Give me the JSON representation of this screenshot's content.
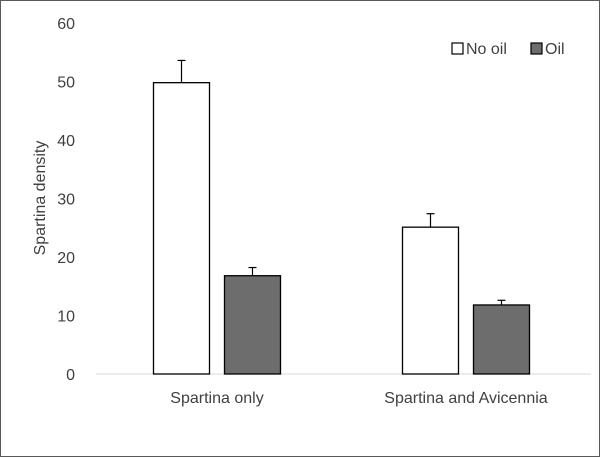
{
  "chart_data": {
    "type": "bar",
    "title": "",
    "xlabel": "",
    "ylabel": "Spartina density",
    "ylim": [
      0,
      60
    ],
    "yticks": [
      0,
      10,
      20,
      30,
      40,
      50,
      60
    ],
    "categories": [
      "Spartina only",
      "Spartina and Avicennia"
    ],
    "series": [
      {
        "name": "No oil",
        "color": "#ffffff",
        "values": [
          49.8,
          25.1
        ],
        "error": [
          3.8,
          2.3
        ]
      },
      {
        "name": "Oil",
        "color": "#6d6d6d",
        "values": [
          16.8,
          11.8
        ],
        "error": [
          1.4,
          0.8
        ]
      }
    ],
    "legend_position": "top-right",
    "grid": false
  }
}
